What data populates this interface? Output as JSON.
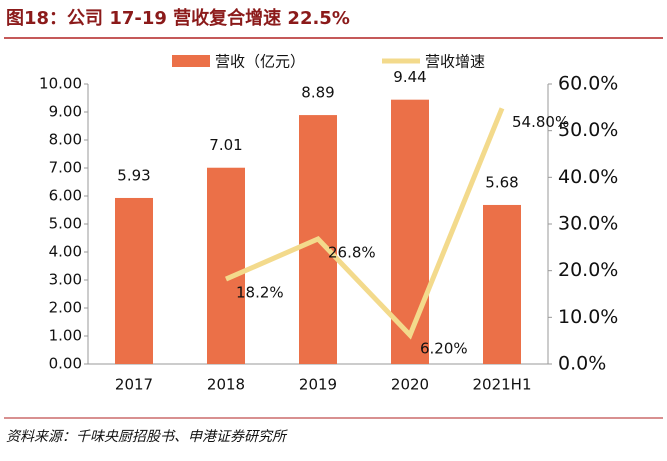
{
  "title": "图18：公司 17-19 营收复合增速 22.5%",
  "source": "资料来源：千味央厨招股书、申港证券研究所",
  "chart_data": {
    "type": "bar-line",
    "categories": [
      "2017",
      "2018",
      "2019",
      "2020",
      "2021H1"
    ],
    "series": [
      {
        "name": "营收（亿元）",
        "type": "bar",
        "color": "#eb7048",
        "values": [
          5.93,
          7.01,
          8.89,
          9.44,
          5.68
        ]
      },
      {
        "name": "营收增速",
        "type": "line",
        "axis": "y2",
        "color": "#f3da8c",
        "values": [
          null,
          18.2,
          26.8,
          6.2,
          54.8
        ],
        "value_labels": [
          null,
          "18.2%",
          "26.8%",
          "6.20%",
          "54.80%"
        ]
      }
    ],
    "ylim": [
      0,
      10
    ],
    "yticks": [
      {
        "value": 0,
        "label": "0.00"
      },
      {
        "value": 1,
        "label": "1.00"
      },
      {
        "value": 2,
        "label": "2.00"
      },
      {
        "value": 3,
        "label": "3.00"
      },
      {
        "value": 4,
        "label": "4.00"
      },
      {
        "value": 5,
        "label": "5.00"
      },
      {
        "value": 6,
        "label": "6.00"
      },
      {
        "value": 7,
        "label": "7.00"
      },
      {
        "value": 8,
        "label": "8.00"
      },
      {
        "value": 9,
        "label": "9.00"
      },
      {
        "value": 10,
        "label": "10.00"
      }
    ],
    "y2lim": [
      0,
      60
    ],
    "y2ticks": [
      {
        "value": 0,
        "label": "0.0%"
      },
      {
        "value": 10,
        "label": "10.0%"
      },
      {
        "value": 20,
        "label": "20.0%"
      },
      {
        "value": 30,
        "label": "30.0%"
      },
      {
        "value": 40,
        "label": "40.0%"
      },
      {
        "value": 50,
        "label": "50.0%"
      },
      {
        "value": 60,
        "label": "60.0%"
      }
    ],
    "legend": "top"
  }
}
